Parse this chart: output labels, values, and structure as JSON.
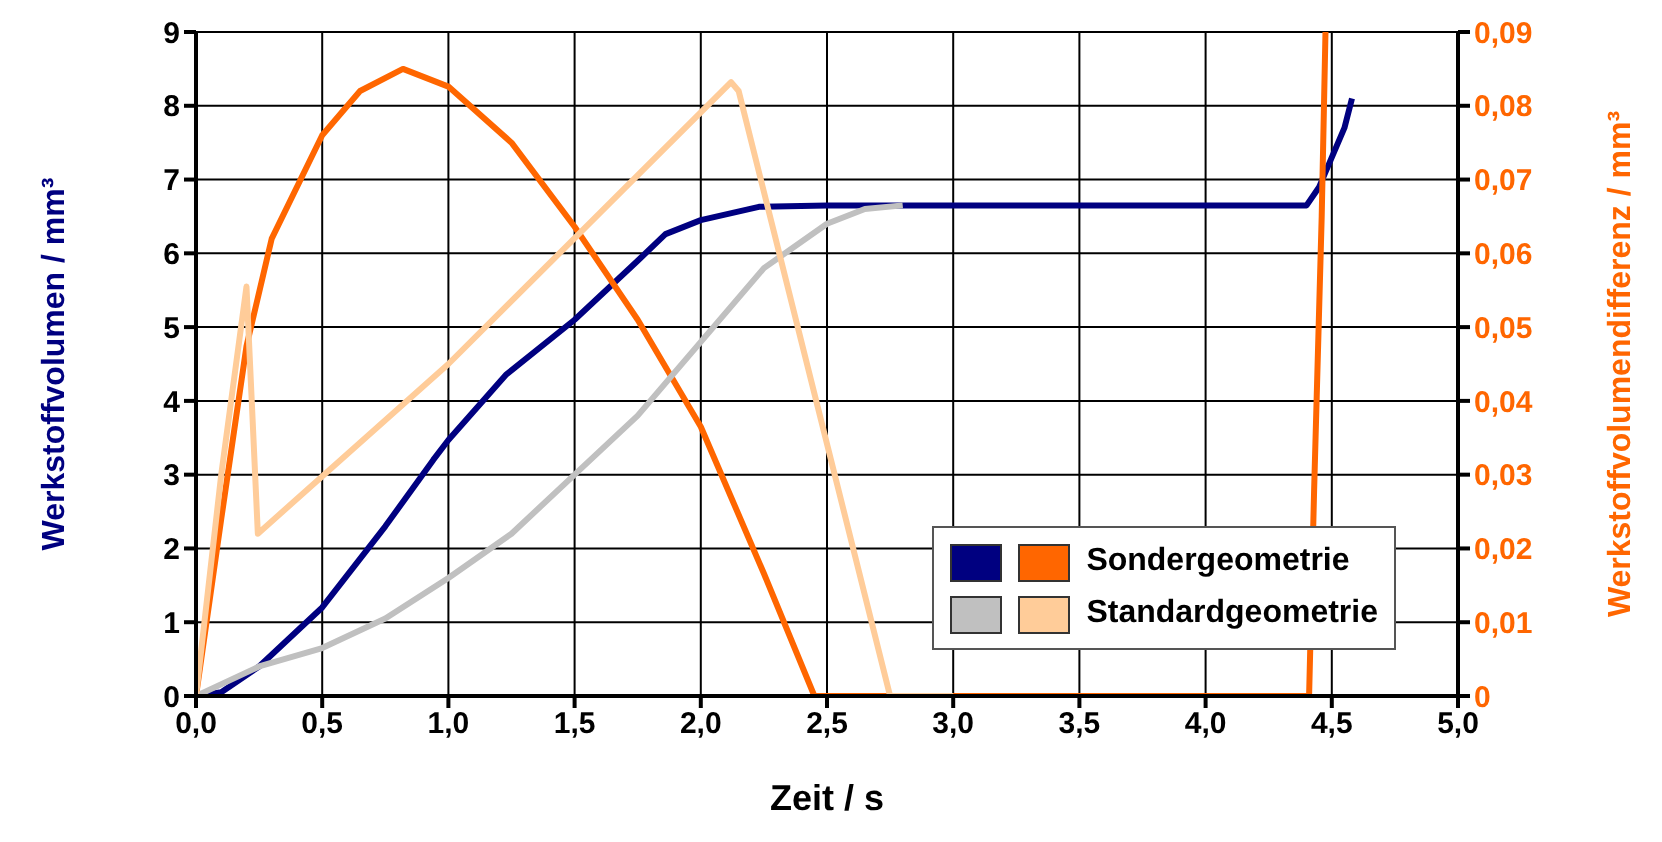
{
  "chart_data": {
    "type": "line",
    "xlabel": "Zeit / s",
    "ylabel": "Werkstoffvolumen / mm³",
    "y2label": "Werkstoffvolumendifferenz / mm³",
    "xlim": [
      0,
      5
    ],
    "xticks": [
      {
        "value": 0,
        "label": "0,0"
      },
      {
        "value": 0.5,
        "label": "0,5"
      },
      {
        "value": 1,
        "label": "1,0"
      },
      {
        "value": 1.5,
        "label": "1,5"
      },
      {
        "value": 2,
        "label": "2,0"
      },
      {
        "value": 2.5,
        "label": "2,5"
      },
      {
        "value": 3,
        "label": "3,0"
      },
      {
        "value": 3.5,
        "label": "3,5"
      },
      {
        "value": 4,
        "label": "4,0"
      },
      {
        "value": 4.5,
        "label": "4,5"
      },
      {
        "value": 5,
        "label": "5,0"
      }
    ],
    "ylim": [
      0,
      9
    ],
    "yticks": [
      0,
      1,
      2,
      3,
      4,
      5,
      6,
      7,
      8,
      9
    ],
    "y2lim": [
      0,
      0.09
    ],
    "y2ticks": [
      0,
      {
        "value": 0.01,
        "label": "0,01"
      },
      {
        "value": 0.02,
        "label": "0,02"
      },
      {
        "value": 0.03,
        "label": "0,03"
      },
      {
        "value": 0.04,
        "label": "0,04"
      },
      {
        "value": 0.05,
        "label": "0,05"
      },
      {
        "value": 0.06,
        "label": "0,06"
      },
      {
        "value": 0.07,
        "label": "0,07"
      },
      {
        "value": 0.08,
        "label": "0,08"
      },
      {
        "value": 0.09,
        "label": "0,09"
      }
    ],
    "grid": true,
    "legend": "bottom right",
    "series": [
      {
        "color": "#000080",
        "x": [
          0,
          0.1,
          0.25,
          0.5,
          0.75,
          0.94,
          1.0,
          1.23,
          1.5,
          1.75,
          1.86,
          2.0,
          2.23,
          2.5,
          3.0,
          3.5,
          4.0,
          4.4,
          4.45,
          4.5,
          4.55,
          4.58
        ],
        "values": [
          0,
          0.05,
          0.4,
          1.2,
          2.3,
          3.2,
          3.47,
          4.36,
          5.1,
          5.9,
          6.26,
          6.45,
          6.63,
          6.65,
          6.65,
          6.65,
          6.65,
          6.65,
          6.9,
          7.3,
          7.7,
          8.1
        ]
      },
      {
        "name": "Sondergeometrie",
        "color": "#ff6600",
        "axis": "y2",
        "x": [
          0,
          0.1,
          0.2,
          0.3,
          0.5,
          0.65,
          0.82,
          1.0,
          1.25,
          1.5,
          1.75,
          2.0,
          2.25,
          2.45,
          3.0,
          3.5,
          4.0,
          4.41,
          4.43,
          4.46,
          4.475
        ],
        "values": [
          0,
          0.024,
          0.0474,
          0.062,
          0.076,
          0.082,
          0.085,
          0.0826,
          0.075,
          0.0636,
          0.051,
          0.0365,
          0.0166,
          0,
          0,
          0,
          0,
          0,
          0.028,
          0.065,
          0.09
        ]
      },
      {
        "color": "#c0c0c0",
        "x": [
          0,
          0.25,
          0.5,
          0.75,
          1.0,
          1.25,
          1.5,
          1.75,
          2.0,
          2.25,
          2.5,
          2.65,
          2.8
        ],
        "values": [
          0,
          0.4,
          0.65,
          1.05,
          1.6,
          2.2,
          3.0,
          3.8,
          4.8,
          5.8,
          6.4,
          6.6,
          6.65
        ]
      },
      {
        "name": "Standardgeometrie",
        "color": "#ffcc99",
        "axis": "y2",
        "x": [
          0,
          0.1,
          0.2,
          0.245,
          1.0,
          2.12,
          2.15,
          2.75,
          3.0
        ],
        "values": [
          0,
          0.03,
          0.0555,
          0.022,
          0.045,
          0.0832,
          0.082,
          0,
          0
        ]
      }
    ]
  }
}
